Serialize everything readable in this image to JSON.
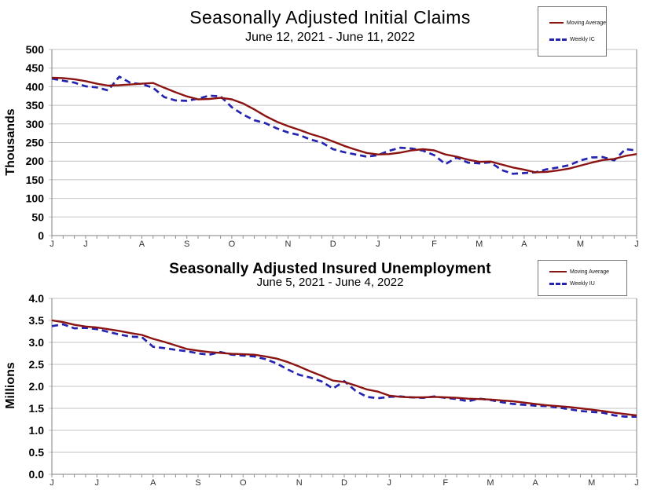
{
  "page": {
    "background": "#ffffff",
    "grid_color": "#c3c3c3",
    "axis_color": "#808080"
  },
  "chart_data": [
    {
      "type": "line",
      "title": "Seasonally Adjusted Initial Claims",
      "subtitle": "June 12, 2021 - June 11, 2022",
      "ylabel": "Thousands",
      "ylim": [
        0,
        500
      ],
      "ytick_labels": [
        "500",
        "450",
        "400",
        "350",
        "300",
        "250",
        "200",
        "150",
        "100",
        "50",
        "0"
      ],
      "x_month_labels": [
        "J",
        "J",
        "A",
        "S",
        "O",
        "N",
        "D",
        "J",
        "F",
        "M",
        "A",
        "M",
        "J"
      ],
      "month_week_index": [
        0,
        3,
        8,
        12,
        16,
        21,
        25,
        29,
        34,
        38,
        42,
        47,
        52
      ],
      "grid": true,
      "legend_position": "top-right",
      "legend_entries": [
        "Moving Average",
        "Weekly IC"
      ],
      "series": [
        {
          "name": "Moving Average",
          "color": "#8B1412",
          "style": "solid",
          "values": [
            424,
            423,
            420,
            415,
            408,
            403,
            404,
            406,
            408,
            410,
            397,
            385,
            374,
            366,
            367,
            370,
            366,
            355,
            339,
            321,
            306,
            294,
            284,
            273,
            264,
            253,
            241,
            231,
            222,
            218,
            219,
            223,
            229,
            232,
            229,
            218,
            212,
            204,
            198,
            199,
            191,
            183,
            177,
            170,
            171,
            175,
            180,
            188,
            196,
            203,
            206,
            214,
            219
          ]
        },
        {
          "name": "Weekly IC",
          "color": "#2424B0",
          "style": "dashed",
          "values": [
            422,
            416,
            411,
            401,
            398,
            390,
            427,
            410,
            407,
            397,
            372,
            363,
            362,
            368,
            376,
            374,
            345,
            325,
            310,
            302,
            288,
            277,
            270,
            258,
            250,
            232,
            224,
            218,
            212,
            216,
            228,
            236,
            234,
            228,
            216,
            192,
            210,
            196,
            194,
            197,
            176,
            166,
            168,
            170,
            178,
            183,
            189,
            202,
            210,
            211,
            202,
            232,
            229
          ]
        }
      ]
    },
    {
      "type": "line",
      "title": "Seasonally Adjusted Insured Unemployment",
      "subtitle": "June 5, 2021 - June 4, 2022",
      "ylabel": "Millions",
      "ylim": [
        0,
        4
      ],
      "ytick_labels": [
        "4.0",
        "3.5",
        "3.0",
        "2.5",
        "2.0",
        "1.5",
        "1.0",
        "0.5",
        "0.0"
      ],
      "x_month_labels": [
        "J",
        "J",
        "A",
        "S",
        "O",
        "N",
        "D",
        "J",
        "F",
        "M",
        "A",
        "M",
        "J"
      ],
      "month_week_index": [
        0,
        4,
        9,
        13,
        17,
        22,
        26,
        30,
        35,
        39,
        43,
        48,
        52
      ],
      "grid": true,
      "legend_position": "top-right",
      "legend_entries": [
        "Moving Average",
        "Weekly IU"
      ],
      "series": [
        {
          "name": "Moving Average",
          "color": "#8B1412",
          "style": "solid",
          "values": [
            3.5,
            3.46,
            3.4,
            3.36,
            3.34,
            3.3,
            3.26,
            3.21,
            3.17,
            3.08,
            3.01,
            2.93,
            2.85,
            2.81,
            2.78,
            2.76,
            2.74,
            2.73,
            2.72,
            2.68,
            2.63,
            2.55,
            2.45,
            2.34,
            2.24,
            2.13,
            2.1,
            2.02,
            1.93,
            1.88,
            1.79,
            1.76,
            1.75,
            1.75,
            1.76,
            1.75,
            1.74,
            1.72,
            1.71,
            1.7,
            1.68,
            1.66,
            1.63,
            1.6,
            1.57,
            1.55,
            1.53,
            1.5,
            1.47,
            1.44,
            1.4,
            1.37,
            1.34
          ]
        },
        {
          "name": "Weekly IU",
          "color": "#2424B0",
          "style": "dashed",
          "values": [
            3.37,
            3.41,
            3.32,
            3.33,
            3.3,
            3.24,
            3.18,
            3.13,
            3.12,
            2.9,
            2.87,
            2.83,
            2.8,
            2.75,
            2.72,
            2.78,
            2.72,
            2.7,
            2.68,
            2.62,
            2.52,
            2.38,
            2.26,
            2.2,
            2.11,
            1.95,
            2.12,
            1.9,
            1.76,
            1.73,
            1.76,
            1.77,
            1.75,
            1.74,
            1.77,
            1.74,
            1.71,
            1.66,
            1.72,
            1.69,
            1.64,
            1.6,
            1.58,
            1.56,
            1.55,
            1.52,
            1.48,
            1.44,
            1.42,
            1.4,
            1.34,
            1.31,
            1.31
          ]
        }
      ]
    }
  ]
}
